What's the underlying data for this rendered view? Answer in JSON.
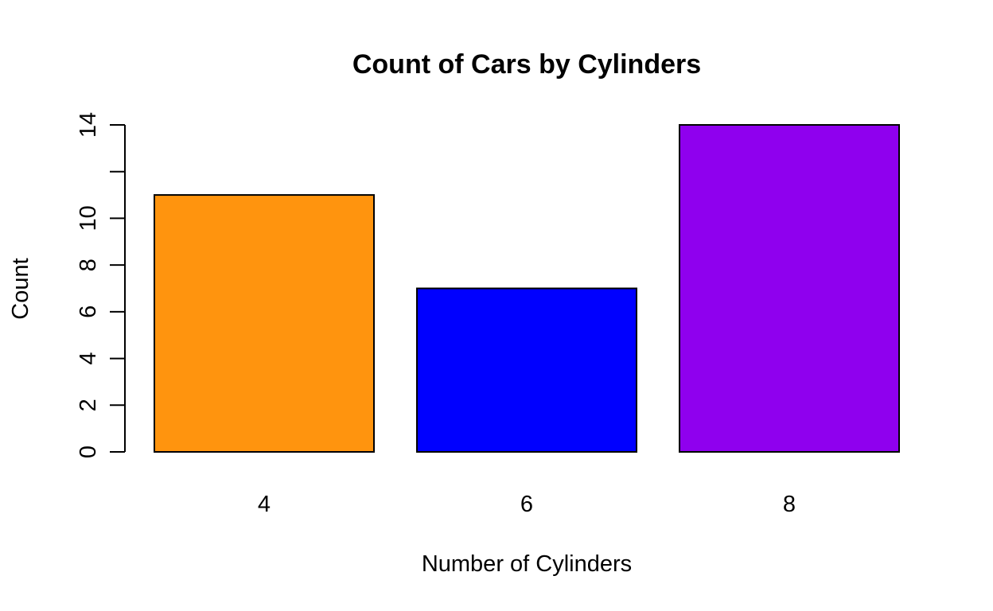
{
  "chart_data": {
    "type": "bar",
    "title": "Count of Cars by Cylinders",
    "xlabel": "Number of Cylinders",
    "ylabel": "Count",
    "categories": [
      "4",
      "6",
      "8"
    ],
    "values": [
      11,
      7,
      14
    ],
    "colors": [
      "#FF940E",
      "#0000FF",
      "#8F00EE"
    ],
    "ylim": [
      0,
      14
    ],
    "y_ticks": [
      0,
      2,
      4,
      6,
      8,
      10,
      12,
      14
    ],
    "y_tick_labels": [
      "0",
      "2",
      "4",
      "6",
      "8",
      "10",
      "",
      "14"
    ],
    "grid": false,
    "legend": "none"
  }
}
